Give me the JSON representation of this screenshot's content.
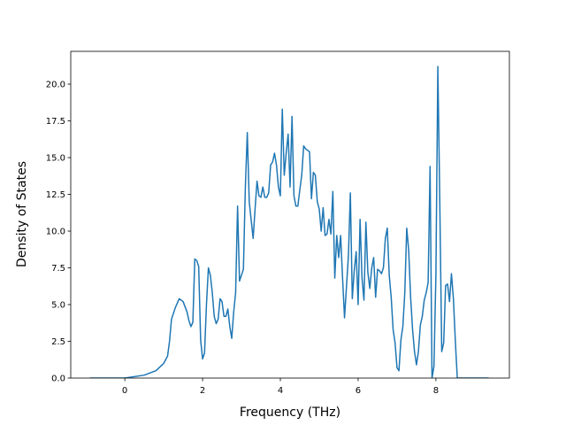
{
  "chart_data": {
    "type": "line",
    "xlabel": "Frequency (THz)",
    "ylabel": "Density of States",
    "x": [
      -0.9,
      0,
      0.5,
      0.8,
      1.0,
      1.1,
      1.15,
      1.2,
      1.3,
      1.4,
      1.5,
      1.6,
      1.65,
      1.7,
      1.75,
      1.8,
      1.85,
      1.9,
      1.95,
      2.0,
      2.05,
      2.1,
      2.15,
      2.2,
      2.25,
      2.3,
      2.35,
      2.4,
      2.45,
      2.5,
      2.55,
      2.6,
      2.65,
      2.7,
      2.75,
      2.8,
      2.85,
      2.9,
      2.95,
      3.0,
      3.05,
      3.1,
      3.15,
      3.2,
      3.3,
      3.35,
      3.4,
      3.45,
      3.5,
      3.55,
      3.6,
      3.65,
      3.7,
      3.75,
      3.8,
      3.85,
      3.9,
      3.95,
      4.0,
      4.05,
      4.1,
      4.15,
      4.2,
      4.25,
      4.3,
      4.35,
      4.4,
      4.45,
      4.5,
      4.55,
      4.6,
      4.65,
      4.7,
      4.75,
      4.8,
      4.85,
      4.9,
      4.95,
      5.0,
      5.05,
      5.1,
      5.15,
      5.2,
      5.25,
      5.3,
      5.35,
      5.4,
      5.45,
      5.5,
      5.55,
      5.6,
      5.65,
      5.7,
      5.75,
      5.8,
      5.85,
      5.9,
      5.95,
      6.0,
      6.05,
      6.1,
      6.15,
      6.2,
      6.25,
      6.3,
      6.35,
      6.4,
      6.45,
      6.5,
      6.55,
      6.6,
      6.65,
      6.7,
      6.75,
      6.8,
      6.85,
      6.9,
      6.95,
      7.0,
      7.05,
      7.1,
      7.15,
      7.2,
      7.25,
      7.3,
      7.35,
      7.4,
      7.45,
      7.5,
      7.55,
      7.6,
      7.65,
      7.7,
      7.75,
      7.8,
      7.85,
      7.9,
      7.95,
      8.0,
      8.05,
      8.1,
      8.15,
      8.2,
      8.25,
      8.3,
      8.35,
      8.4,
      8.45,
      8.5,
      8.55,
      9.36
    ],
    "series": [
      {
        "color": "#1f77b4",
        "values": [
          0,
          0,
          0.2,
          0.5,
          1.0,
          1.5,
          2.5,
          4.0,
          4.8,
          5.4,
          5.2,
          4.5,
          3.9,
          3.5,
          3.8,
          8.1,
          8.0,
          7.6,
          2.6,
          1.3,
          1.7,
          5.0,
          7.5,
          7.0,
          5.8,
          4.2,
          3.7,
          4.0,
          5.4,
          5.2,
          4.2,
          4.2,
          4.7,
          3.5,
          2.7,
          4.5,
          5.8,
          11.7,
          6.6,
          7.0,
          7.4,
          13.0,
          16.7,
          12.0,
          9.5,
          11.5,
          13.4,
          12.4,
          12.3,
          13.0,
          12.3,
          12.3,
          12.6,
          14.5,
          14.7,
          15.3,
          14.5,
          13.0,
          12.4,
          18.3,
          13.8,
          15.3,
          16.6,
          13.0,
          17.8,
          12.4,
          11.7,
          11.7,
          12.8,
          13.8,
          15.8,
          15.6,
          15.5,
          15.4,
          12.2,
          14.0,
          13.8,
          12.0,
          11.5,
          10.0,
          11.6,
          9.7,
          9.8,
          10.8,
          9.8,
          12.7,
          6.8,
          9.7,
          8.2,
          9.7,
          6.8,
          4.1,
          6.2,
          8.3,
          12.6,
          5.4,
          7.3,
          8.6,
          5.0,
          10.8,
          6.8,
          5.3,
          10.6,
          7.2,
          6.1,
          7.5,
          8.2,
          5.5,
          7.4,
          7.3,
          7.1,
          7.5,
          9.5,
          10.2,
          7.0,
          5.5,
          3.3,
          2.4,
          0.7,
          0.5,
          2.6,
          3.5,
          5.8,
          10.2,
          8.7,
          5.5,
          3.3,
          1.8,
          0.9,
          1.8,
          3.6,
          4.2,
          5.3,
          5.8,
          6.5,
          14.4,
          0,
          0.8,
          7.0,
          21.2,
          12.0,
          1.8,
          2.4,
          6.3,
          6.4,
          5.2,
          7.1,
          5.4,
          2.5,
          0,
          0
        ]
      }
    ],
    "xlim": [
      -1.39,
      9.89
    ],
    "ylim": [
      0,
      22.23
    ],
    "xticks": [
      0,
      2,
      4,
      6,
      8
    ],
    "yticks": [
      {
        "value": 0,
        "label": "0.0"
      },
      2.5,
      {
        "value": 5,
        "label": "5.0"
      },
      7.5,
      {
        "value": 10,
        "label": "10.0"
      },
      12.5,
      {
        "value": 15,
        "label": "15.0"
      },
      17.5,
      {
        "value": 20,
        "label": "20.0"
      }
    ]
  }
}
